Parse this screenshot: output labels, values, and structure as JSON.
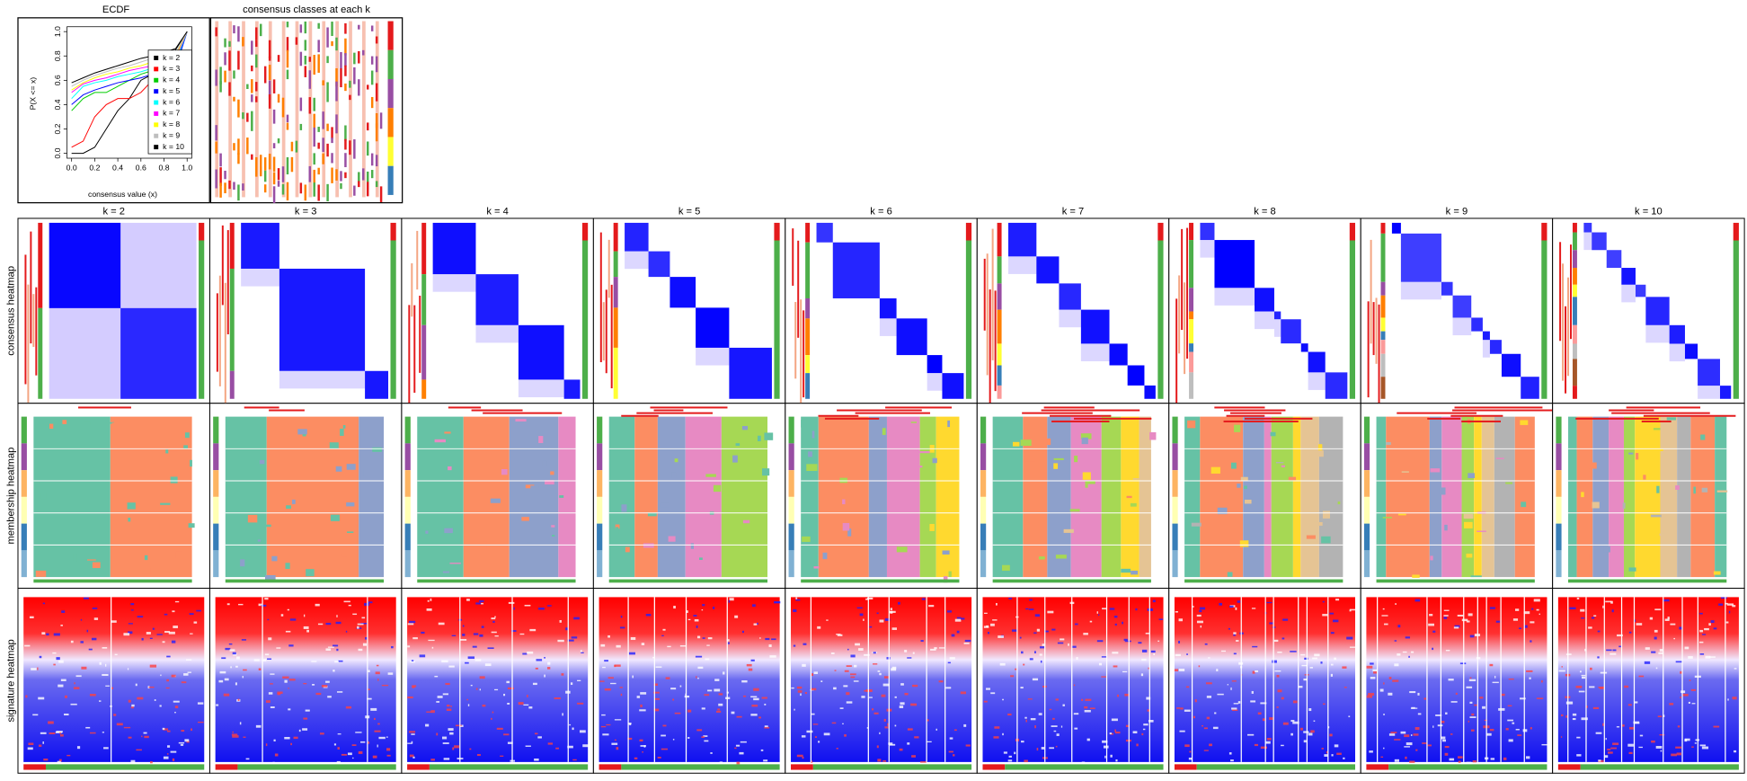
{
  "chart_data": {
    "type": "line",
    "title": "ECDF",
    "xlabel": "consensus value (x)",
    "ylabel": "P(X <= x)",
    "x": [
      0,
      0.1,
      0.2,
      0.3,
      0.4,
      0.5,
      0.6,
      0.7,
      0.8,
      0.9,
      1
    ],
    "series": [
      {
        "name": "k = 2",
        "color": "#000000",
        "values": [
          0,
          0,
          0.05,
          0.2,
          0.35,
          0.45,
          0.6,
          0.65,
          0.75,
          0.85,
          1
        ]
      },
      {
        "name": "k = 3",
        "color": "#ff0000",
        "values": [
          0.05,
          0.1,
          0.3,
          0.4,
          0.45,
          0.45,
          0.5,
          0.6,
          0.7,
          0.8,
          1
        ]
      },
      {
        "name": "k = 4",
        "color": "#00cd00",
        "values": [
          0.35,
          0.45,
          0.5,
          0.5,
          0.55,
          0.6,
          0.65,
          0.68,
          0.7,
          0.72,
          1
        ]
      },
      {
        "name": "k = 5",
        "color": "#0000ff",
        "values": [
          0.4,
          0.48,
          0.52,
          0.55,
          0.58,
          0.6,
          0.62,
          0.65,
          0.67,
          0.7,
          1
        ]
      },
      {
        "name": "k = 6",
        "color": "#00ffff",
        "values": [
          0.45,
          0.55,
          0.58,
          0.6,
          0.63,
          0.65,
          0.67,
          0.7,
          0.72,
          0.75,
          1
        ]
      },
      {
        "name": "k = 7",
        "color": "#ff00ff",
        "values": [
          0.5,
          0.57,
          0.6,
          0.62,
          0.65,
          0.68,
          0.7,
          0.72,
          0.75,
          0.78,
          1
        ]
      },
      {
        "name": "k = 8",
        "color": "#ffff00",
        "values": [
          0.52,
          0.58,
          0.62,
          0.65,
          0.67,
          0.7,
          0.72,
          0.75,
          0.78,
          0.8,
          1
        ]
      },
      {
        "name": "k = 9",
        "color": "#bebebe",
        "values": [
          0.55,
          0.6,
          0.64,
          0.67,
          0.7,
          0.72,
          0.75,
          0.78,
          0.8,
          0.82,
          1
        ]
      },
      {
        "name": "k = 10",
        "color": "#000000",
        "values": [
          0.58,
          0.62,
          0.66,
          0.69,
          0.72,
          0.75,
          0.78,
          0.8,
          0.83,
          0.86,
          1
        ]
      }
    ],
    "xlim": [
      -0.04,
      1.04
    ],
    "ylim": [
      -0.04,
      1.04
    ],
    "xticks": [
      {
        "value": 0,
        "label": "0.0"
      },
      0.2,
      0.4,
      0.6,
      0.8,
      {
        "value": 1,
        "label": "1.0"
      }
    ],
    "yticks": [
      {
        "value": 0,
        "label": "0.0"
      },
      0.2,
      0.4,
      0.6,
      0.8,
      {
        "value": 1,
        "label": "1.0"
      }
    ],
    "legend": "right"
  },
  "classes_panel": {
    "title": "consensus classes at each k"
  },
  "columns": [
    "k = 2",
    "k = 3",
    "k = 4",
    "k = 5",
    "k = 6",
    "k = 7",
    "k = 8",
    "k = 9",
    "k = 10"
  ],
  "rows": [
    "consensus heatmap",
    "membership heatmap",
    "signature heatmap"
  ]
}
